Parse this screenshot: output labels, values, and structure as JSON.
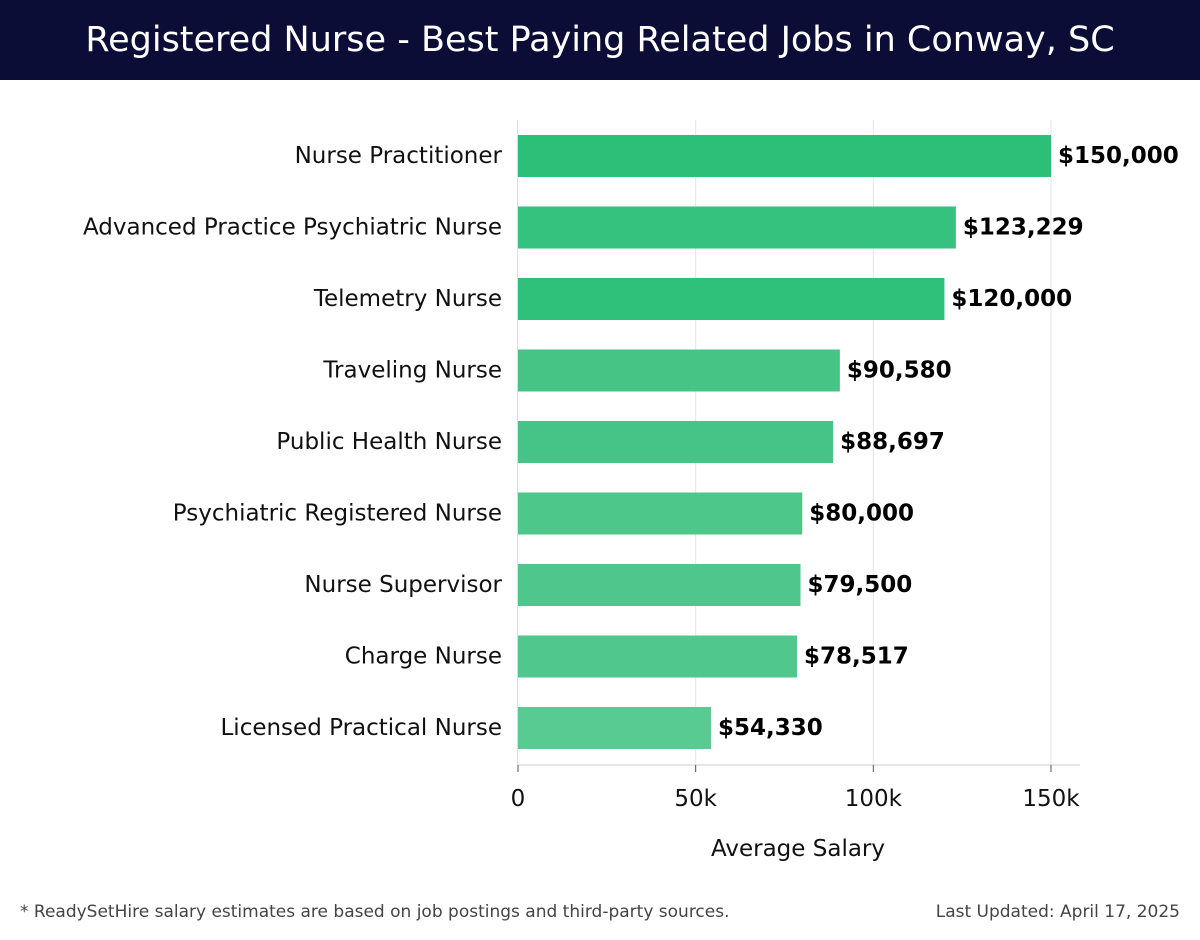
{
  "header": {
    "title": "Registered Nurse - Best Paying Related Jobs in Conway, SC"
  },
  "chart_data": {
    "type": "bar",
    "orientation": "horizontal",
    "categories": [
      "Nurse Practitioner",
      "Advanced Practice Psychiatric Nurse",
      "Telemetry Nurse",
      "Traveling Nurse",
      "Public Health Nurse",
      "Psychiatric Registered Nurse",
      "Nurse Supervisor",
      "Charge Nurse",
      "Licensed Practical Nurse"
    ],
    "values": [
      150000,
      123229,
      120000,
      90580,
      88697,
      80000,
      79500,
      78517,
      54330
    ],
    "value_labels": [
      "$150,000",
      "$123,229",
      "$120,000",
      "$90,580",
      "$88,697",
      "$80,000",
      "$79,500",
      "$78,517",
      "$54,330"
    ],
    "bar_colors": [
      "#2bbf78",
      "#35c27e",
      "#2fc07a",
      "#45c486",
      "#46c487",
      "#4ec78b",
      "#4fc78c",
      "#50c88d",
      "#58cb93"
    ],
    "xlabel": "Average Salary",
    "ylabel": "",
    "xlim": [
      0,
      158000
    ],
    "x_ticks": [
      0,
      50000,
      100000,
      150000
    ],
    "x_tick_labels": [
      "0",
      "50k",
      "100k",
      "150k"
    ],
    "grid": "vertical"
  },
  "footer": {
    "note": "* ReadySetHire salary estimates are based on job postings and third-party sources.",
    "updated": "Last Updated: April 17, 2025"
  }
}
